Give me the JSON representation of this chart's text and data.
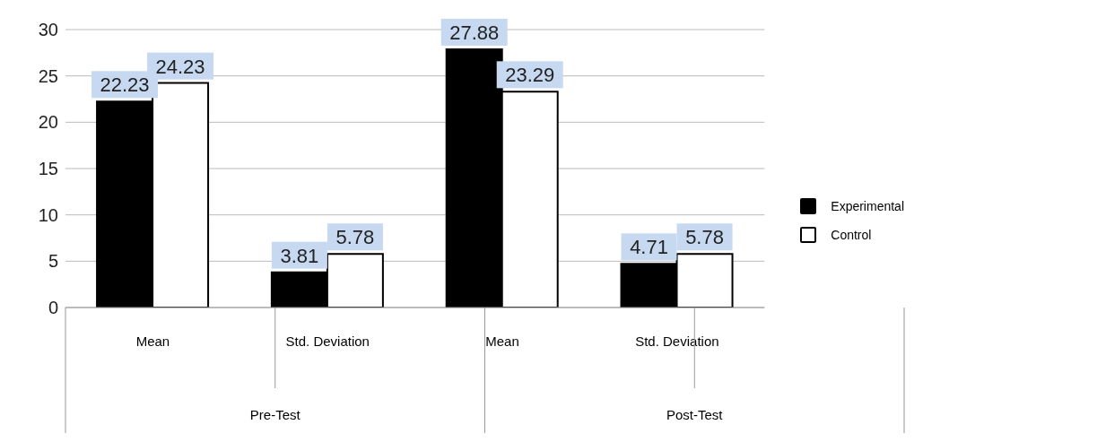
{
  "chart_data": {
    "type": "bar",
    "categories": [
      "Mean",
      "Std. Deviation",
      "Mean",
      "Std. Deviation"
    ],
    "series": [
      {
        "name": "Experimental",
        "color": "#000000",
        "values": [
          22.23,
          3.81,
          27.88,
          4.71
        ]
      },
      {
        "name": "Control",
        "color": "#ffffff",
        "values": [
          24.23,
          5.78,
          23.29,
          5.78
        ]
      }
    ],
    "ylim": [
      0,
      30
    ],
    "yticks": [
      0,
      5,
      10,
      15,
      20,
      25,
      30
    ],
    "grid": "y",
    "legend": "right",
    "data_labels": true,
    "annotations": [
      "Pre-Test",
      "Post-Test"
    ]
  }
}
